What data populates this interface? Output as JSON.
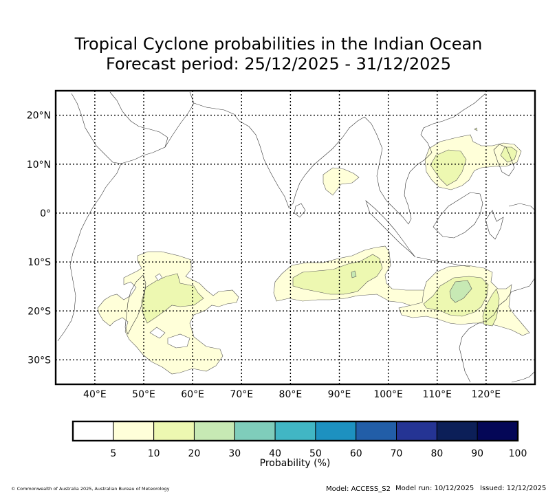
{
  "title": {
    "line1": "Tropical Cyclone probabilities in the Indian Ocean",
    "line2": "Forecast period: 25/12/2025 - 31/12/2025"
  },
  "map": {
    "lon_range": [
      32,
      130
    ],
    "lat_range": [
      -35,
      25
    ],
    "lon_ticks": [
      {
        "value": 40,
        "label": "40°E"
      },
      {
        "value": 50,
        "label": "50°E"
      },
      {
        "value": 60,
        "label": "60°E"
      },
      {
        "value": 70,
        "label": "70°E"
      },
      {
        "value": 80,
        "label": "80°E"
      },
      {
        "value": 90,
        "label": "90°E"
      },
      {
        "value": 100,
        "label": "100°E"
      },
      {
        "value": 110,
        "label": "110°E"
      },
      {
        "value": 120,
        "label": "120°E"
      }
    ],
    "lat_ticks": [
      {
        "value": 20,
        "label": "20°N"
      },
      {
        "value": 10,
        "label": "10°N"
      },
      {
        "value": 0,
        "label": "0°"
      },
      {
        "value": -10,
        "label": "10°S"
      },
      {
        "value": -20,
        "label": "20°S"
      },
      {
        "value": -30,
        "label": "30°S"
      }
    ]
  },
  "colorbar": {
    "label": "Probability (%)",
    "bins": [
      {
        "value": 5,
        "label": "5",
        "color": "#ffffff"
      },
      {
        "value": 10,
        "label": "10",
        "color": "#ffffd9"
      },
      {
        "value": 20,
        "label": "20",
        "color": "#edf8b1"
      },
      {
        "value": 30,
        "label": "30",
        "color": "#c7e9b4"
      },
      {
        "value": 40,
        "label": "40",
        "color": "#7fcdbb"
      },
      {
        "value": 50,
        "label": "50",
        "color": "#41b6c4"
      },
      {
        "value": 60,
        "label": "60",
        "color": "#1d91c0"
      },
      {
        "value": 70,
        "label": "70",
        "color": "#225ea8"
      },
      {
        "value": 80,
        "label": "80",
        "color": "#253494"
      },
      {
        "value": 90,
        "label": "90",
        "color": "#0c1f58"
      },
      {
        "value": 100,
        "label": "100",
        "color": "#040757"
      }
    ]
  },
  "footer": {
    "copyright": "© Commonwealth of Australia 2025, Australian Bureau of Meteorology",
    "model": "Model: ACCESS_S2",
    "model_run": "Model run: 10/12/2025",
    "issued": "Issued: 12/12/2025"
  }
}
